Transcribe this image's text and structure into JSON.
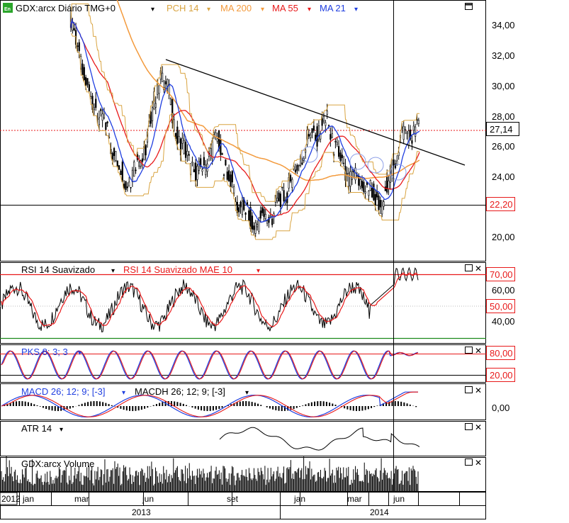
{
  "colors": {
    "black": "#000000",
    "pch": "#d9a441",
    "ma200": "#f39a3c",
    "ma55": "#e8191a",
    "ma21": "#1f3ee0",
    "rsi_mae": "#e8191a",
    "pks_k": "#1f3ee0",
    "pks_d": "#e8191a",
    "macd": "#1f3ee0",
    "macd_signal": "#e8191a",
    "hline_red": "#e8191a",
    "hline_green": "#1a8a1a",
    "grid": "#c8c8c8",
    "badge_border": "#e8191a"
  },
  "header": {
    "symbol": "GDX:arcx Diário TMG+0",
    "pch_label": "PCH 14",
    "ma200_label": "MA 200",
    "ma55_label": "MA 55",
    "ma21_label": "MA 21"
  },
  "rsi_header": {
    "rsi_label": "RSI 14 Suavizado",
    "mae_label": "RSI 14 Suavizado MAE 10"
  },
  "pks_header": {
    "label": "PKS 8; 3; 3"
  },
  "macd_header": {
    "macd_label": "MACD 26; 12; 9; [-3]",
    "macdh_label": "MACDH 26; 12; 9; [-3]"
  },
  "atr_header": {
    "label": "ATR 14"
  },
  "volume_header": {
    "label": "GDX:arcx Volume"
  },
  "price_axis": {
    "ticks": [
      "34,00",
      "32,00",
      "30,00",
      "28,00",
      "26,00",
      "24,00",
      "22,00",
      "20,00"
    ],
    "current_badge": "27,14",
    "support_badge": "22,20"
  },
  "rsi_axis": {
    "ticks": [
      "70,00",
      "60,00",
      "50,00",
      "40,00"
    ],
    "badge_70": "70,00",
    "badge_50": "50,00"
  },
  "pks_axis": {
    "badge_80": "80,00",
    "badge_20": "20,00"
  },
  "macd_axis": {
    "zero": "0,00"
  },
  "time_axis": {
    "months": [
      "2012",
      "jan",
      "mar",
      "jun",
      "set",
      "jan",
      "mar",
      "jun"
    ],
    "years": [
      "2013",
      "2014"
    ]
  },
  "chart_data": [
    {
      "type": "candlestick",
      "title": "GDX:arcx Diário TMG+0",
      "ylim": [
        19,
        35.5
      ],
      "current_price": 27.14,
      "support_level": 22.2,
      "overlays": [
        "PCH 14",
        "MA 200",
        "MA 55",
        "MA 21"
      ],
      "trendline": {
        "from": [
          "2013-05",
          31.8
        ],
        "to": [
          "2014-08",
          24.8
        ]
      },
      "series_close_approx": [
        {
          "date": "2013-01",
          "value": 34.5
        },
        {
          "date": "2013-02",
          "value": 29.5
        },
        {
          "date": "2013-03",
          "value": 27.0
        },
        {
          "date": "2013-04",
          "value": 23.5
        },
        {
          "date": "2013-05",
          "value": 25.5
        },
        {
          "date": "2013-06",
          "value": 31.0
        },
        {
          "date": "2013-07",
          "value": 26.0
        },
        {
          "date": "2013-08",
          "value": 24.0
        },
        {
          "date": "2013-09",
          "value": 26.5
        },
        {
          "date": "2013-10",
          "value": 22.5
        },
        {
          "date": "2013-11",
          "value": 20.8
        },
        {
          "date": "2013-12",
          "value": 21.5
        },
        {
          "date": "2014-01",
          "value": 23.5
        },
        {
          "date": "2014-02",
          "value": 26.5
        },
        {
          "date": "2014-03",
          "value": 27.5
        },
        {
          "date": "2014-04",
          "value": 24.0
        },
        {
          "date": "2014-05",
          "value": 23.5
        },
        {
          "date": "2014-06",
          "value": 22.0
        },
        {
          "date": "2014-07",
          "value": 26.5
        },
        {
          "date": "2014-08",
          "value": 27.14
        }
      ]
    },
    {
      "type": "line",
      "title": "RSI 14 Suavizado",
      "series": [
        {
          "name": "RSI 14 Suavizado"
        },
        {
          "name": "RSI 14 Suavizado MAE 10"
        }
      ],
      "levels": [
        70,
        50,
        30
      ],
      "ylim": [
        30,
        76
      ]
    },
    {
      "type": "line",
      "title": "PKS 8; 3; 3",
      "levels": [
        80,
        20
      ],
      "ylim": [
        0,
        100
      ]
    },
    {
      "type": "bar",
      "title": "MACD 26; 12; 9; [-3]",
      "levels": [
        0
      ]
    },
    {
      "type": "line",
      "title": "ATR 14"
    },
    {
      "type": "bar",
      "title": "GDX:arcx Volume"
    }
  ]
}
